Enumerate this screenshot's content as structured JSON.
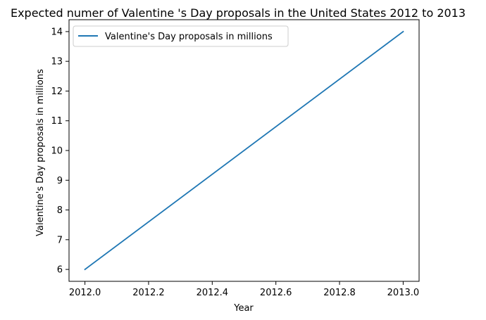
{
  "chart_data": {
    "type": "line",
    "title": "Expected numer of Valentine 's Day proposals in the United States 2012 to 2013",
    "xlabel": "Year",
    "ylabel": "Valentine's Day proposals in millions",
    "x": [
      2012,
      2013
    ],
    "series": [
      {
        "name": "Valentine's Day proposals in millions",
        "values": [
          6,
          14
        ],
        "color": "#1f77b4"
      }
    ],
    "xlim": [
      2011.95,
      2013.05
    ],
    "ylim": [
      5.6,
      14.4
    ],
    "xticks": [
      "2012.0",
      "2012.2",
      "2012.4",
      "2012.6",
      "2012.8",
      "2013.0"
    ],
    "yticks": [
      "6",
      "7",
      "8",
      "9",
      "10",
      "11",
      "12",
      "13",
      "14"
    ],
    "grid": false,
    "legend_position": "top-left"
  }
}
